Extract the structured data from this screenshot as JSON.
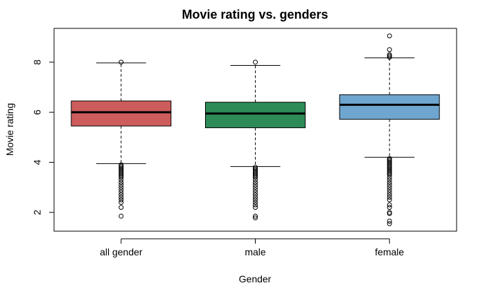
{
  "chart_data": {
    "type": "boxplot",
    "title": "Movie rating vs. genders",
    "xlabel": "Gender",
    "ylabel": "Movie rating",
    "ylim": [
      1.25,
      9.35
    ],
    "yticks": [
      2,
      4,
      6,
      8
    ],
    "grid": false,
    "legend": "none",
    "categories": [
      "all gender",
      "male",
      "female"
    ],
    "boxes": [
      {
        "name": "all gender",
        "color": "#cd5c5c",
        "whisker_low": 3.95,
        "q1": 5.45,
        "median": 6.0,
        "q3": 6.45,
        "whisker_high": 7.97,
        "outliers": [
          8.0,
          3.9,
          3.85,
          3.8,
          3.75,
          3.7,
          3.65,
          3.6,
          3.55,
          3.5,
          3.45,
          3.4,
          3.3,
          3.2,
          3.1,
          3.0,
          2.9,
          2.8,
          2.7,
          2.6,
          2.5,
          2.4,
          2.2,
          1.85
        ]
      },
      {
        "name": "male",
        "color": "#2e8b57",
        "whisker_low": 3.83,
        "q1": 5.38,
        "median": 5.95,
        "q3": 6.4,
        "whisker_high": 7.87,
        "outliers": [
          8.0,
          3.8,
          3.75,
          3.7,
          3.65,
          3.6,
          3.55,
          3.5,
          3.45,
          3.4,
          3.3,
          3.2,
          3.1,
          3.0,
          2.9,
          2.8,
          2.7,
          2.6,
          2.5,
          2.4,
          2.3,
          2.2,
          1.85,
          1.78
        ]
      },
      {
        "name": "female",
        "color": "#6ea6d0",
        "whisker_low": 4.2,
        "q1": 5.72,
        "median": 6.3,
        "q3": 6.7,
        "whisker_high": 8.17,
        "outliers": [
          9.05,
          8.5,
          8.3,
          8.25,
          8.2,
          4.15,
          4.1,
          4.05,
          4.0,
          3.95,
          3.9,
          3.85,
          3.8,
          3.75,
          3.7,
          3.65,
          3.6,
          3.55,
          3.5,
          3.4,
          3.3,
          3.2,
          3.1,
          3.0,
          2.9,
          2.8,
          2.7,
          2.6,
          2.5,
          2.3,
          2.2,
          2.0,
          1.95,
          1.65,
          1.55
        ]
      }
    ]
  }
}
